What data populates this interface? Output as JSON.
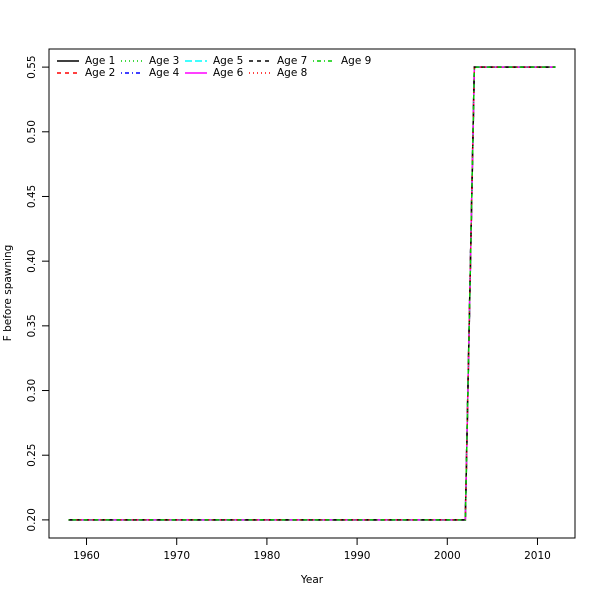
{
  "chart_data": {
    "type": "line",
    "xlabel": "Year",
    "ylabel": "F before spawning",
    "x": [
      1958,
      1959,
      1960,
      1961,
      1962,
      1963,
      1964,
      1965,
      1966,
      1967,
      1968,
      1969,
      1970,
      1971,
      1972,
      1973,
      1974,
      1975,
      1976,
      1977,
      1978,
      1979,
      1980,
      1981,
      1982,
      1983,
      1984,
      1985,
      1986,
      1987,
      1988,
      1989,
      1990,
      1991,
      1992,
      1993,
      1994,
      1995,
      1996,
      1997,
      1998,
      1999,
      2000,
      2001,
      2002,
      2003,
      2004,
      2005,
      2006,
      2007,
      2008,
      2009,
      2010,
      2011,
      2012
    ],
    "xlim": [
      1955.84,
      2014.16
    ],
    "ylim": [
      0.186,
      0.564
    ],
    "xticks": [
      1960,
      1970,
      1980,
      1990,
      2000,
      2010
    ],
    "yticks": [
      {
        "value": 0.2,
        "label": "0.20"
      },
      0.25,
      {
        "value": 0.3,
        "label": "0.30"
      },
      0.35,
      {
        "value": 0.4,
        "label": "0.40"
      },
      0.45,
      {
        "value": 0.5,
        "label": "0.50"
      },
      0.55
    ],
    "legend_position": "top-left",
    "series": [
      {
        "name": "Age 1",
        "color": "#000000",
        "dash": "solid",
        "values": [
          0.2,
          0.2,
          0.2,
          0.2,
          0.2,
          0.2,
          0.2,
          0.2,
          0.2,
          0.2,
          0.2,
          0.2,
          0.2,
          0.2,
          0.2,
          0.2,
          0.2,
          0.2,
          0.2,
          0.2,
          0.2,
          0.2,
          0.2,
          0.2,
          0.2,
          0.2,
          0.2,
          0.2,
          0.2,
          0.2,
          0.2,
          0.2,
          0.2,
          0.2,
          0.2,
          0.2,
          0.2,
          0.2,
          0.2,
          0.2,
          0.2,
          0.2,
          0.2,
          0.2,
          0.2,
          0.55,
          0.55,
          0.55,
          0.55,
          0.55,
          0.55,
          0.55,
          0.55,
          0.55,
          0.55
        ]
      },
      {
        "name": "Age 2",
        "color": "#ff0000",
        "dash": "dashed",
        "values": [
          0.2,
          0.2,
          0.2,
          0.2,
          0.2,
          0.2,
          0.2,
          0.2,
          0.2,
          0.2,
          0.2,
          0.2,
          0.2,
          0.2,
          0.2,
          0.2,
          0.2,
          0.2,
          0.2,
          0.2,
          0.2,
          0.2,
          0.2,
          0.2,
          0.2,
          0.2,
          0.2,
          0.2,
          0.2,
          0.2,
          0.2,
          0.2,
          0.2,
          0.2,
          0.2,
          0.2,
          0.2,
          0.2,
          0.2,
          0.2,
          0.2,
          0.2,
          0.2,
          0.2,
          0.2,
          0.55,
          0.55,
          0.55,
          0.55,
          0.55,
          0.55,
          0.55,
          0.55,
          0.55,
          0.55
        ]
      },
      {
        "name": "Age 3",
        "color": "#00cd00",
        "dash": "dotted",
        "values": [
          0.2,
          0.2,
          0.2,
          0.2,
          0.2,
          0.2,
          0.2,
          0.2,
          0.2,
          0.2,
          0.2,
          0.2,
          0.2,
          0.2,
          0.2,
          0.2,
          0.2,
          0.2,
          0.2,
          0.2,
          0.2,
          0.2,
          0.2,
          0.2,
          0.2,
          0.2,
          0.2,
          0.2,
          0.2,
          0.2,
          0.2,
          0.2,
          0.2,
          0.2,
          0.2,
          0.2,
          0.2,
          0.2,
          0.2,
          0.2,
          0.2,
          0.2,
          0.2,
          0.2,
          0.2,
          0.55,
          0.55,
          0.55,
          0.55,
          0.55,
          0.55,
          0.55,
          0.55,
          0.55,
          0.55
        ]
      },
      {
        "name": "Age 4",
        "color": "#0000ff",
        "dash": "dotdash",
        "values": [
          0.2,
          0.2,
          0.2,
          0.2,
          0.2,
          0.2,
          0.2,
          0.2,
          0.2,
          0.2,
          0.2,
          0.2,
          0.2,
          0.2,
          0.2,
          0.2,
          0.2,
          0.2,
          0.2,
          0.2,
          0.2,
          0.2,
          0.2,
          0.2,
          0.2,
          0.2,
          0.2,
          0.2,
          0.2,
          0.2,
          0.2,
          0.2,
          0.2,
          0.2,
          0.2,
          0.2,
          0.2,
          0.2,
          0.2,
          0.2,
          0.2,
          0.2,
          0.2,
          0.2,
          0.2,
          0.55,
          0.55,
          0.55,
          0.55,
          0.55,
          0.55,
          0.55,
          0.55,
          0.55,
          0.55
        ]
      },
      {
        "name": "Age 5",
        "color": "#00ffff",
        "dash": "longdash",
        "values": [
          0.2,
          0.2,
          0.2,
          0.2,
          0.2,
          0.2,
          0.2,
          0.2,
          0.2,
          0.2,
          0.2,
          0.2,
          0.2,
          0.2,
          0.2,
          0.2,
          0.2,
          0.2,
          0.2,
          0.2,
          0.2,
          0.2,
          0.2,
          0.2,
          0.2,
          0.2,
          0.2,
          0.2,
          0.2,
          0.2,
          0.2,
          0.2,
          0.2,
          0.2,
          0.2,
          0.2,
          0.2,
          0.2,
          0.2,
          0.2,
          0.2,
          0.2,
          0.2,
          0.2,
          0.2,
          0.55,
          0.55,
          0.55,
          0.55,
          0.55,
          0.55,
          0.55,
          0.55,
          0.55,
          0.55
        ]
      },
      {
        "name": "Age 6",
        "color": "#ff00ff",
        "dash": "solid",
        "values": [
          0.2,
          0.2,
          0.2,
          0.2,
          0.2,
          0.2,
          0.2,
          0.2,
          0.2,
          0.2,
          0.2,
          0.2,
          0.2,
          0.2,
          0.2,
          0.2,
          0.2,
          0.2,
          0.2,
          0.2,
          0.2,
          0.2,
          0.2,
          0.2,
          0.2,
          0.2,
          0.2,
          0.2,
          0.2,
          0.2,
          0.2,
          0.2,
          0.2,
          0.2,
          0.2,
          0.2,
          0.2,
          0.2,
          0.2,
          0.2,
          0.2,
          0.2,
          0.2,
          0.2,
          0.2,
          0.55,
          0.55,
          0.55,
          0.55,
          0.55,
          0.55,
          0.55,
          0.55,
          0.55,
          0.55
        ]
      },
      {
        "name": "Age 7",
        "color": "#000000",
        "dash": "dashed",
        "values": [
          0.2,
          0.2,
          0.2,
          0.2,
          0.2,
          0.2,
          0.2,
          0.2,
          0.2,
          0.2,
          0.2,
          0.2,
          0.2,
          0.2,
          0.2,
          0.2,
          0.2,
          0.2,
          0.2,
          0.2,
          0.2,
          0.2,
          0.2,
          0.2,
          0.2,
          0.2,
          0.2,
          0.2,
          0.2,
          0.2,
          0.2,
          0.2,
          0.2,
          0.2,
          0.2,
          0.2,
          0.2,
          0.2,
          0.2,
          0.2,
          0.2,
          0.2,
          0.2,
          0.2,
          0.2,
          0.55,
          0.55,
          0.55,
          0.55,
          0.55,
          0.55,
          0.55,
          0.55,
          0.55,
          0.55
        ]
      },
      {
        "name": "Age 8",
        "color": "#ff0000",
        "dash": "dotted",
        "values": [
          0.2,
          0.2,
          0.2,
          0.2,
          0.2,
          0.2,
          0.2,
          0.2,
          0.2,
          0.2,
          0.2,
          0.2,
          0.2,
          0.2,
          0.2,
          0.2,
          0.2,
          0.2,
          0.2,
          0.2,
          0.2,
          0.2,
          0.2,
          0.2,
          0.2,
          0.2,
          0.2,
          0.2,
          0.2,
          0.2,
          0.2,
          0.2,
          0.2,
          0.2,
          0.2,
          0.2,
          0.2,
          0.2,
          0.2,
          0.2,
          0.2,
          0.2,
          0.2,
          0.2,
          0.2,
          0.55,
          0.55,
          0.55,
          0.55,
          0.55,
          0.55,
          0.55,
          0.55,
          0.55,
          0.55
        ]
      },
      {
        "name": "Age 9",
        "color": "#00cd00",
        "dash": "dotdash",
        "values": [
          0.2,
          0.2,
          0.2,
          0.2,
          0.2,
          0.2,
          0.2,
          0.2,
          0.2,
          0.2,
          0.2,
          0.2,
          0.2,
          0.2,
          0.2,
          0.2,
          0.2,
          0.2,
          0.2,
          0.2,
          0.2,
          0.2,
          0.2,
          0.2,
          0.2,
          0.2,
          0.2,
          0.2,
          0.2,
          0.2,
          0.2,
          0.2,
          0.2,
          0.2,
          0.2,
          0.2,
          0.2,
          0.2,
          0.2,
          0.2,
          0.2,
          0.2,
          0.2,
          0.2,
          0.2,
          0.55,
          0.55,
          0.55,
          0.55,
          0.55,
          0.55,
          0.55,
          0.55,
          0.55,
          0.55
        ]
      }
    ]
  }
}
